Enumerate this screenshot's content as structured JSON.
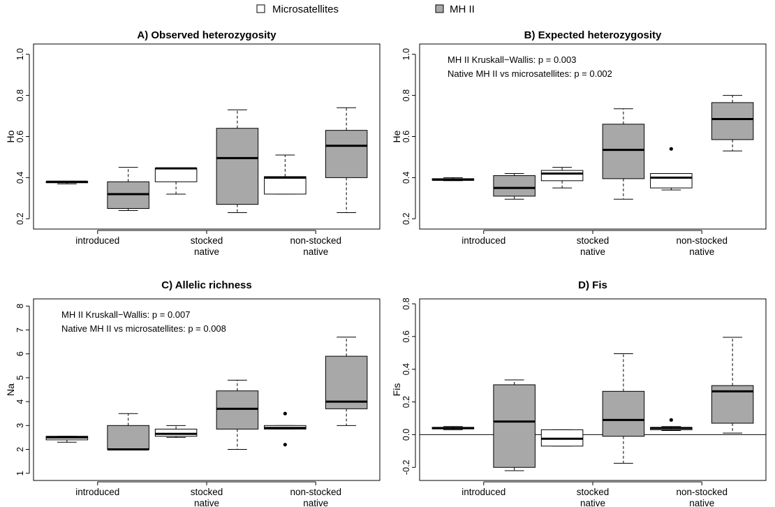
{
  "legend": {
    "items": [
      {
        "label": "Microsatellites",
        "color": "#ffffff"
      },
      {
        "label": "MH II",
        "color": "#a8a8a8"
      }
    ]
  },
  "colors": {
    "microsatellites": "#ffffff",
    "mhii": "#a8a8a8",
    "line": "#000000"
  },
  "chart_data": [
    {
      "type": "box",
      "title": "A) Observed heterozygosity",
      "ylabel": "Ho",
      "ylim": [
        0.15,
        1.05
      ],
      "yticks": [
        0.2,
        0.4,
        0.6,
        0.8,
        1.0
      ],
      "categories": [
        [
          "introduced"
        ],
        [
          "stocked",
          "native"
        ],
        [
          "non-stocked",
          "native"
        ]
      ],
      "annotations": [],
      "hline": null,
      "series": [
        {
          "name": "Microsatellites",
          "boxes": [
            {
              "min": 0.37,
              "q1": 0.375,
              "median": 0.38,
              "q3": 0.38,
              "max": 0.38,
              "outliers": []
            },
            {
              "min": 0.32,
              "q1": 0.38,
              "median": 0.445,
              "q3": 0.445,
              "max": 0.445,
              "outliers": []
            },
            {
              "min": 0.32,
              "q1": 0.32,
              "median": 0.4,
              "q3": 0.405,
              "max": 0.51,
              "outliers": []
            }
          ]
        },
        {
          "name": "MH II",
          "boxes": [
            {
              "min": 0.24,
              "q1": 0.25,
              "median": 0.32,
              "q3": 0.38,
              "max": 0.45,
              "outliers": []
            },
            {
              "min": 0.23,
              "q1": 0.27,
              "median": 0.495,
              "q3": 0.64,
              "max": 0.73,
              "outliers": []
            },
            {
              "min": 0.23,
              "q1": 0.4,
              "median": 0.555,
              "q3": 0.63,
              "max": 0.74,
              "outliers": []
            }
          ]
        }
      ]
    },
    {
      "type": "box",
      "title": "B) Expected heterozygosity",
      "ylabel": "He",
      "ylim": [
        0.15,
        1.05
      ],
      "yticks": [
        0.2,
        0.4,
        0.6,
        0.8,
        1.0
      ],
      "categories": [
        [
          "introduced"
        ],
        [
          "stocked",
          "native"
        ],
        [
          "non-stocked",
          "native"
        ]
      ],
      "annotations": [
        "MH II Kruskall−Wallis: p = 0.003",
        "Native MH II vs microsatellites: p = 0.002"
      ],
      "hline": null,
      "series": [
        {
          "name": "Microsatellites",
          "boxes": [
            {
              "min": 0.385,
              "q1": 0.388,
              "median": 0.39,
              "q3": 0.395,
              "max": 0.4,
              "outliers": []
            },
            {
              "min": 0.35,
              "q1": 0.385,
              "median": 0.42,
              "q3": 0.435,
              "max": 0.45,
              "outliers": []
            },
            {
              "min": 0.34,
              "q1": 0.35,
              "median": 0.4,
              "q3": 0.42,
              "max": 0.42,
              "outliers": [
                0.54
              ]
            }
          ]
        },
        {
          "name": "MH II",
          "boxes": [
            {
              "min": 0.295,
              "q1": 0.31,
              "median": 0.35,
              "q3": 0.41,
              "max": 0.42,
              "outliers": []
            },
            {
              "min": 0.295,
              "q1": 0.395,
              "median": 0.535,
              "q3": 0.66,
              "max": 0.735,
              "outliers": []
            },
            {
              "min": 0.53,
              "q1": 0.585,
              "median": 0.685,
              "q3": 0.765,
              "max": 0.8,
              "outliers": []
            }
          ]
        }
      ]
    },
    {
      "type": "box",
      "title": "C) Allelic richness",
      "ylabel": "Na",
      "ylim": [
        0.7,
        8.3
      ],
      "yticks": [
        1,
        2,
        3,
        4,
        5,
        6,
        7,
        8
      ],
      "categories": [
        [
          "introduced"
        ],
        [
          "stocked",
          "native"
        ],
        [
          "non-stocked",
          "native"
        ]
      ],
      "annotations": [
        "MH II Kruskall−Wallis: p = 0.007",
        "Native MH II vs microsatellites: p = 0.008"
      ],
      "hline": null,
      "series": [
        {
          "name": "Microsatellites",
          "boxes": [
            {
              "min": 2.3,
              "q1": 2.4,
              "median": 2.5,
              "q3": 2.55,
              "max": 2.55,
              "outliers": []
            },
            {
              "min": 2.5,
              "q1": 2.55,
              "median": 2.65,
              "q3": 2.85,
              "max": 3.0,
              "outliers": []
            },
            {
              "min": 2.85,
              "q1": 2.85,
              "median": 2.9,
              "q3": 3.0,
              "max": 3.0,
              "outliers": [
                3.5,
                2.2
              ]
            }
          ]
        },
        {
          "name": "MH II",
          "boxes": [
            {
              "min": 2.0,
              "q1": 2.0,
              "median": 2.0,
              "q3": 3.0,
              "max": 3.5,
              "outliers": []
            },
            {
              "min": 2.0,
              "q1": 2.85,
              "median": 3.7,
              "q3": 4.45,
              "max": 4.9,
              "outliers": []
            },
            {
              "min": 3.0,
              "q1": 3.7,
              "median": 4.0,
              "q3": 5.9,
              "max": 6.7,
              "outliers": []
            }
          ]
        }
      ]
    },
    {
      "type": "box",
      "title": "D) Fis",
      "ylabel": "Fis",
      "ylim": [
        -0.28,
        0.83
      ],
      "yticks": [
        -0.2,
        0.0,
        0.2,
        0.4,
        0.6,
        0.8
      ],
      "categories": [
        [
          "introduced"
        ],
        [
          "stocked",
          "native"
        ],
        [
          "non-stocked",
          "native"
        ]
      ],
      "annotations": [],
      "hline": 0,
      "series": [
        {
          "name": "Microsatellites",
          "boxes": [
            {
              "min": 0.03,
              "q1": 0.035,
              "median": 0.04,
              "q3": 0.045,
              "max": 0.05,
              "outliers": []
            },
            {
              "min": -0.07,
              "q1": -0.07,
              "median": -0.025,
              "q3": 0.03,
              "max": 0.03,
              "outliers": []
            },
            {
              "min": 0.025,
              "q1": 0.03,
              "median": 0.04,
              "q3": 0.045,
              "max": 0.05,
              "outliers": [
                0.09
              ]
            }
          ]
        },
        {
          "name": "MH II",
          "boxes": [
            {
              "min": -0.22,
              "q1": -0.2,
              "median": 0.08,
              "q3": 0.305,
              "max": 0.335,
              "outliers": []
            },
            {
              "min": -0.175,
              "q1": -0.01,
              "median": 0.09,
              "q3": 0.265,
              "max": 0.495,
              "outliers": []
            },
            {
              "min": 0.01,
              "q1": 0.07,
              "median": 0.265,
              "q3": 0.3,
              "max": 0.595,
              "outliers": []
            }
          ]
        }
      ]
    }
  ]
}
